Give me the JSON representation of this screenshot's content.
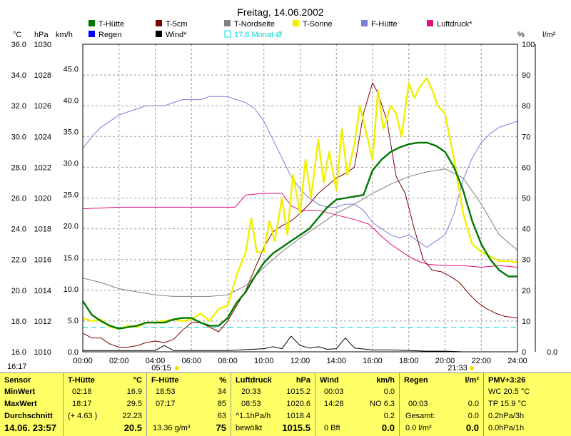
{
  "chart_data": {
    "type": "line",
    "title": "Freitag, 14.06.2002",
    "axis_units": {
      "temp": "°C",
      "pressure": "hPa",
      "wind": "km/h",
      "humidity": "%",
      "rain": "l/m²"
    },
    "temp_axis": {
      "ylim": [
        16,
        36
      ],
      "ticks": [
        "16.0",
        "18.0",
        "20.0",
        "22.0",
        "24.0",
        "26.0",
        "28.0",
        "30.0",
        "32.0",
        "34.0",
        "36.0"
      ]
    },
    "pressure_axis": {
      "ylim": [
        1010,
        1030
      ],
      "ticks": [
        "1010",
        "1012",
        "1014",
        "1016",
        "1018",
        "1020",
        "1022",
        "1024",
        "1026",
        "1028",
        "1030"
      ]
    },
    "wind_axis": {
      "ylim": [
        0,
        48.9
      ],
      "ticks": [
        "0.0",
        "5.0",
        "10.0",
        "15.0",
        "20.0",
        "25.0",
        "30.0",
        "35.0",
        "40.0",
        "45.0"
      ]
    },
    "humidity_axis": {
      "ylim": [
        0,
        100
      ],
      "ticks": [
        "0",
        "10",
        "20",
        "30",
        "40",
        "50",
        "60",
        "70",
        "80",
        "90",
        "100"
      ]
    },
    "rain_axis": {
      "ticks": [
        "0.0"
      ]
    },
    "x_ticks": [
      "00:00",
      "02:00",
      "04:00",
      "06:00",
      "08:00",
      "10:00",
      "12:00",
      "14:00",
      "16:00",
      "18:00",
      "20:00",
      "22:00",
      "24:00"
    ],
    "xlim_hours": [
      0,
      24
    ],
    "grid": true,
    "sunrise_label": "05:15",
    "sunset_label": "21:33",
    "legend": [
      {
        "name": "T-Hütte",
        "color": "#007800"
      },
      {
        "name": "T-5cm",
        "color": "#800000"
      },
      {
        "name": "T-Nordseite",
        "color": "#808080"
      },
      {
        "name": "T-Sonne",
        "color": "#f0f000"
      },
      {
        "name": "F-Hütte",
        "color": "#7c7cdc"
      },
      {
        "name": "Luftdruck*",
        "color": "#e0107a"
      },
      {
        "name": "Regen",
        "color": "#0000ff"
      },
      {
        "name": "Wind*",
        "color": "#000000"
      },
      {
        "name": "17.6 Monat-Ø",
        "color": "#00d8d8"
      }
    ],
    "series": [
      {
        "name": "T-Hütte",
        "axis": "temp",
        "color": "#007800",
        "width": 2.4,
        "x": [
          0,
          0.5,
          1,
          1.5,
          2,
          2.5,
          3,
          3.5,
          4,
          4.5,
          5,
          5.5,
          6,
          6.5,
          7,
          7.5,
          8,
          8.5,
          9,
          9.5,
          10,
          10.5,
          11,
          11.5,
          12,
          12.5,
          13,
          13.5,
          14,
          14.5,
          15,
          15.5,
          16,
          16.5,
          17,
          17.5,
          18,
          18.5,
          19,
          19.5,
          20,
          20.5,
          21,
          21.5,
          22,
          22.5,
          23,
          23.5,
          24
        ],
        "values": [
          19.3,
          18.4,
          18.0,
          17.7,
          17.5,
          17.6,
          17.7,
          17.9,
          17.9,
          17.9,
          18.1,
          18.2,
          18.2,
          17.9,
          17.7,
          17.7,
          18.2,
          19.2,
          19.9,
          20.9,
          21.8,
          22.4,
          22.8,
          23.2,
          23.6,
          24.0,
          24.7,
          25.4,
          25.9,
          26.0,
          26.1,
          26.2,
          27.8,
          28.5,
          29.0,
          29.3,
          29.5,
          29.6,
          29.6,
          29.4,
          29.0,
          28.0,
          26.5,
          24.5,
          23.0,
          22.0,
          21.3,
          20.9,
          20.9
        ]
      },
      {
        "name": "T-5cm",
        "axis": "temp",
        "color": "#800000",
        "width": 1,
        "x": [
          0,
          0.5,
          1,
          1.5,
          2,
          2.5,
          3,
          3.5,
          4,
          4.5,
          5,
          5.5,
          6,
          6.5,
          7,
          7.5,
          8,
          8.5,
          9,
          9.5,
          10,
          10.5,
          11,
          11.5,
          12,
          12.5,
          13,
          13.5,
          14,
          14.5,
          15,
          15.5,
          16,
          16.3,
          16.8,
          17.3,
          17.8,
          18.3,
          18.8,
          19.3,
          19.8,
          20.3,
          20.8,
          21.3,
          21.8,
          22.3,
          22.8,
          23.3,
          24
        ],
        "values": [
          17.2,
          16.9,
          16.9,
          16.5,
          16.3,
          16.3,
          16.4,
          16.6,
          16.7,
          16.6,
          16.8,
          17.4,
          17.9,
          17.9,
          17.6,
          17.3,
          18.0,
          19.0,
          20.0,
          21.4,
          22.8,
          23.8,
          24.2,
          24.5,
          25.0,
          25.6,
          26.3,
          26.8,
          27.3,
          27.6,
          28.0,
          31.5,
          33.5,
          32.8,
          31.0,
          27.4,
          26.3,
          24.0,
          22.0,
          21.3,
          21.2,
          20.9,
          20.5,
          19.8,
          19.2,
          18.8,
          18.5,
          18.3,
          18.2
        ]
      },
      {
        "name": "T-Nordseite",
        "axis": "temp",
        "color": "#808080",
        "width": 1,
        "x": [
          0,
          1,
          2,
          3,
          4,
          5,
          6,
          7,
          8,
          9,
          10,
          11,
          12,
          13,
          14,
          15,
          16,
          17,
          18,
          19,
          20,
          21,
          22,
          23,
          24
        ],
        "values": [
          20.8,
          20.5,
          20.1,
          19.9,
          19.7,
          19.6,
          19.6,
          19.6,
          19.7,
          20.3,
          21.5,
          22.5,
          23.4,
          24.2,
          25.0,
          25.6,
          26.3,
          26.9,
          27.4,
          27.7,
          27.9,
          27.3,
          25.6,
          23.6,
          22.6
        ]
      },
      {
        "name": "T-Sonne",
        "axis": "temp",
        "color": "#f0f000",
        "width": 2.4,
        "x": [
          0,
          0.5,
          1,
          1.5,
          2,
          2.5,
          3,
          3.5,
          4,
          4.5,
          5,
          5.5,
          6,
          6.5,
          7,
          7.5,
          8,
          8.5,
          9,
          9.3,
          9.6,
          10,
          10.3,
          10.6,
          11,
          11.3,
          11.6,
          12,
          12.3,
          12.6,
          13,
          13.3,
          13.6,
          14,
          14.3,
          14.6,
          15,
          15.3,
          15.6,
          16,
          16.3,
          16.6,
          17,
          17.3,
          17.6,
          18,
          18.3,
          18.6,
          19,
          19.3,
          19.6,
          20,
          20.5,
          21,
          21.5,
          22,
          22.5,
          23,
          23.5,
          24
        ],
        "values": [
          18.2,
          18.0,
          18.1,
          17.6,
          17.5,
          17.7,
          17.6,
          17.9,
          17.9,
          18.0,
          18.1,
          18.0,
          18.1,
          18.5,
          18.0,
          18.8,
          19.0,
          21.0,
          22.5,
          24.7,
          22.5,
          22.5,
          24.5,
          23.2,
          26.0,
          23.6,
          27.5,
          25.0,
          28.5,
          26.0,
          29.8,
          27.0,
          29.0,
          26.5,
          30.5,
          27.5,
          29.5,
          32.0,
          30.5,
          28.5,
          33.0,
          30.5,
          32.0,
          31.5,
          30.0,
          33.5,
          32.5,
          33.2,
          33.8,
          33.0,
          32.0,
          31.5,
          28.5,
          25.0,
          23.0,
          22.5,
          22.2,
          21.9,
          21.9,
          21.8
        ]
      },
      {
        "name": "F-Hütte",
        "axis": "humidity",
        "color": "#7c7cdc",
        "width": 1,
        "x": [
          0,
          0.5,
          1,
          1.5,
          2,
          2.5,
          3,
          3.5,
          4,
          4.5,
          5,
          5.5,
          6,
          6.5,
          7,
          7.5,
          8,
          8.5,
          9,
          9.5,
          10,
          10.5,
          11,
          11.5,
          12,
          12.5,
          13,
          13.5,
          14,
          14.5,
          15,
          15.5,
          16,
          16.5,
          17,
          17.5,
          18,
          18.5,
          19,
          19.5,
          20,
          20.5,
          21,
          21.5,
          22,
          22.5,
          23,
          23.5,
          24
        ],
        "values": [
          66,
          70,
          73,
          75,
          77,
          78,
          79,
          80,
          80,
          80,
          81,
          82,
          82,
          82,
          83,
          83,
          83,
          82,
          81,
          79,
          75,
          69,
          63,
          57,
          53,
          50,
          48,
          47,
          47,
          48,
          48,
          46,
          42,
          40,
          38,
          37,
          38,
          36,
          34,
          36,
          38,
          45,
          56,
          63,
          68,
          71,
          73,
          74,
          75
        ]
      },
      {
        "name": "Luftdruck*",
        "axis": "pressure",
        "color": "#e0107a",
        "width": 1,
        "x": [
          0,
          2,
          4,
          6,
          7.5,
          8.4,
          9,
          10,
          11,
          11.5,
          12,
          13,
          14,
          15,
          15.8,
          16.5,
          17,
          17.5,
          18,
          18.5,
          19,
          20,
          21,
          22,
          23,
          24
        ],
        "values": [
          1019.3,
          1019.4,
          1019.4,
          1019.4,
          1019.4,
          1019.4,
          1020.2,
          1020.3,
          1020.3,
          1019.5,
          1019.2,
          1019.2,
          1018.9,
          1018.6,
          1018.3,
          1017.5,
          1017.0,
          1016.6,
          1016.2,
          1015.9,
          1015.7,
          1015.6,
          1015.6,
          1015.5,
          1015.6,
          1015.5
        ]
      },
      {
        "name": "Wind*",
        "axis": "wind",
        "color": "#000000",
        "width": 1,
        "x": [
          0,
          4,
          4.5,
          5,
          8,
          10,
          10.5,
          11,
          11.5,
          12,
          12.5,
          13,
          13.5,
          14,
          14.5,
          15,
          16,
          17,
          18,
          19,
          20,
          21,
          22,
          23,
          24
        ],
        "values": [
          0.2,
          0.2,
          1.0,
          0.2,
          0.2,
          0.5,
          0.8,
          0.5,
          2.5,
          1.0,
          0.6,
          0.8,
          0.4,
          0.5,
          2.2,
          0.6,
          0.3,
          0.3,
          0.2,
          0.1,
          0.1,
          0.0,
          0.0,
          0.0,
          0.0
        ]
      },
      {
        "name": "17.6 Monat-Ø",
        "axis": "temp",
        "color": "#00d8d8",
        "width": 1,
        "dashed": true,
        "x": [
          0,
          24
        ],
        "values": [
          17.6,
          17.6
        ]
      }
    ]
  },
  "stats": {
    "time_label": "16:17",
    "sensor": {
      "header": "Sensor",
      "min": "MinWert",
      "max": "MaxWert",
      "avg": "Durchschnitt",
      "now": "14.06. 23:57"
    },
    "t_huette": {
      "header": "T-Hütte",
      "unit": "°C",
      "min_time": "02:18",
      "min_val": "16.9",
      "max_time": "18:17",
      "max_val": "29.5",
      "avg_note": "(+ 4.63 )",
      "avg_val": "22.23",
      "now_val": "20.5"
    },
    "f_huette": {
      "header": "F-Hütte",
      "unit": "%",
      "min_time": "18:53",
      "min_val": "34",
      "max_time": "07:17",
      "max_val": "85",
      "avg_val": "63",
      "now_note": "13.36 g/m³",
      "now_val": "75"
    },
    "luftdruck": {
      "header": "Luftdruck",
      "unit": "hPa",
      "min_time": "20:33",
      "min_val": "1015.2",
      "max_time": "08:53",
      "max_val": "1020.6",
      "avg_note": "^1.1hPa/h",
      "avg_val": "1018.4",
      "now_note": "bewölkt",
      "now_val": "1015.5"
    },
    "wind": {
      "header": "Wind",
      "unit": "km/h",
      "min_time": "00:03",
      "min_val": "0.0",
      "max_time": "14:28",
      "max_val": "NO 6.3",
      "avg_val": "0.2",
      "now_note": "0 Bft",
      "now_val": "0.0"
    },
    "regen": {
      "header": "Regen",
      "unit": "l/m²",
      "max_time": "00:03",
      "max_val": "0.0",
      "avg_note": "Gesamt:",
      "avg_val": "0.0",
      "now_note": "0.0 l/m²",
      "now_val": "0.0"
    },
    "pmv": {
      "header": "PMV+3:26",
      "line1": "WC 20.5 °C",
      "line2": "TP 15.9 °C",
      "line3": "0.2hPa/3h",
      "line4": "0.0hPa/1h"
    }
  }
}
